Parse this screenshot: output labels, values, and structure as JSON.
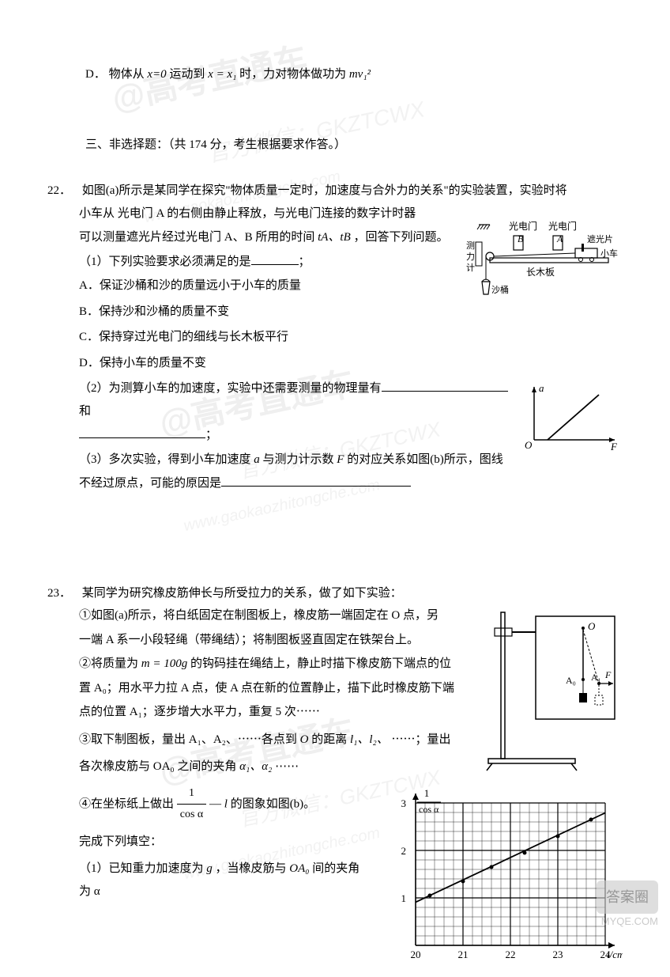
{
  "watermarks": {
    "main1": "@高考直通车",
    "sub1a": "官方微信：GKZTCWX",
    "sub1b": "www.gaokaozhitongche.com",
    "main2": "@高考直通车",
    "sub2a": "官方微信：GKZTCWX",
    "sub2b": "www.gaokaozhitongche.com",
    "main3": "@高考直通车",
    "sub3a": "官方微信：GKZTCWX",
    "sub3b": "www.gaokaozhitongche.com"
  },
  "option_d_top": {
    "label": "D．",
    "text_prefix": "物体从 ",
    "x0": "x=0",
    "text_mid": " 运动到 ",
    "x1": "x = x₁",
    "text_end": "时，力对物体做功为",
    "formula": " mv₁²"
  },
  "section3": {
    "text": "三、非选择题：（共 174 分，考生根据要求作答。）"
  },
  "q22": {
    "num": "22．",
    "intro_line1": "如图(a)所示是某同学在探究\"物体质量一定时，加速度与合外力的关系\"的实验装置，实验时将",
    "intro_line2": "小车从 光电门 A 的右侧由静止释放，与光电门连接的数字计时器",
    "intro_line3_prefix": "可以测量遮光片经过光电门 A、B 所用的时间 ",
    "intro_line3_vars": "tA、tB",
    "intro_line3_suffix": "，回答下列问题。",
    "part1": "（1）下列实验要求必须满足的是",
    "part1_suffix": "；",
    "opt_a": "A．保证沙桶和沙的质量远小于小车的质量",
    "opt_b": "B．保持沙和沙桶的质量不变",
    "opt_c": "C．保持穿过光电门的细线与长木板平行",
    "opt_d": "D．保持小车的质量不变",
    "part2_line1": "（2）为测算小车的加速度，实验中还需要测量的物理量有",
    "part2_and": "和",
    "part2_suffix": "；",
    "part3_prefix": "（3）多次实验，得到小车加速度 ",
    "part3_a": "a",
    "part3_mid": " 与测力计示数 ",
    "part3_f": "F",
    "part3_line1_end": " 的对应关系如图(b)所示，图线",
    "part3_line2": "不经过原点，可能的原因是",
    "diagram_a": {
      "labels": {
        "photogate": "光电门",
        "A": "A",
        "B": "B",
        "board": "长木板",
        "car": "小车",
        "shade": "遮光片",
        "meter1": "测",
        "meter2": "力",
        "meter3": "计",
        "bucket": "沙桶"
      }
    },
    "diagram_b": {
      "y_label": "a",
      "x_label": "F",
      "origin": "O"
    }
  },
  "q23": {
    "num": "23．",
    "intro": "某同学为研究橡皮筋伸长与所受拉力的关系，做了如下实验：",
    "step1_line1": "①如图(a)所示，将白纸固定在制图板上，橡皮筋一端固定在 O 点，另",
    "step1_line2": "一端 A 系一小段轻绳（带绳结）；将制图板竖直固定在铁架台上。",
    "step2_prefix": "②将质量为 ",
    "step2_m": "m = 100g",
    "step2_line1_end": " 的钩码挂在绳结上，静止时描下橡皮筋下端点的位",
    "step2_line2": "置 A₀；用水平力拉 A 点，使 A 点在新的位置静止，描下此时橡皮筋下端",
    "step2_line3": "点的位置 A₁；逐步增大水平力，重复 5 次⋯⋯",
    "step3_line1_prefix": "③取下制图板，量出 A₁、A₂、⋯⋯各点到 ",
    "step3_o": "O",
    "step3_line1_mid": " 的距离 ",
    "step3_l": "l₁、l₂、",
    "step3_line1_end": "⋯⋯；量出",
    "step3_line2_prefix": "各次橡皮筋与 OA₀ 之间的夹角 ",
    "step3_alpha": "α₁、α₂",
    "step3_line2_end": "⋯⋯",
    "step4_prefix": "④在坐标纸上做出 ",
    "step4_frac_num": "1",
    "step4_frac_den": "cos α",
    "step4_mid": " — ",
    "step4_l": "l",
    "step4_end": " 的图象如图(b)。",
    "fill_prompt": "完成下列填空：",
    "part1_prefix": "（1）已知重力加速度为 ",
    "part1_g": "g",
    "part1_mid": "，当橡皮筋与 ",
    "part1_oa": "OA₀",
    "part1_end": " 间的夹角为 α",
    "diagram_a": {
      "O": "O",
      "A0": "A₀",
      "A1": "A₁",
      "F": "F"
    },
    "chart_b": {
      "y_label_num": "1",
      "y_label_den": "cos α",
      "x_label": "l/cm",
      "y_ticks": [
        "1",
        "2",
        "3"
      ],
      "x_ticks": [
        "20",
        "21",
        "22",
        "23",
        "24"
      ],
      "points": [
        {
          "x": 20.3,
          "y": 1.05
        },
        {
          "x": 21.0,
          "y": 1.35
        },
        {
          "x": 21.6,
          "y": 1.65
        },
        {
          "x": 22.3,
          "y": 1.95
        },
        {
          "x": 23.0,
          "y": 2.3
        },
        {
          "x": 23.7,
          "y": 2.65
        }
      ],
      "xlim": [
        20,
        24
      ],
      "ylim": [
        0,
        3
      ],
      "grid_minor": 5,
      "line_color": "#000000",
      "bg_color": "#ffffff"
    }
  },
  "badge": {
    "text": "答案圈",
    "url": "MYQE.COM"
  }
}
